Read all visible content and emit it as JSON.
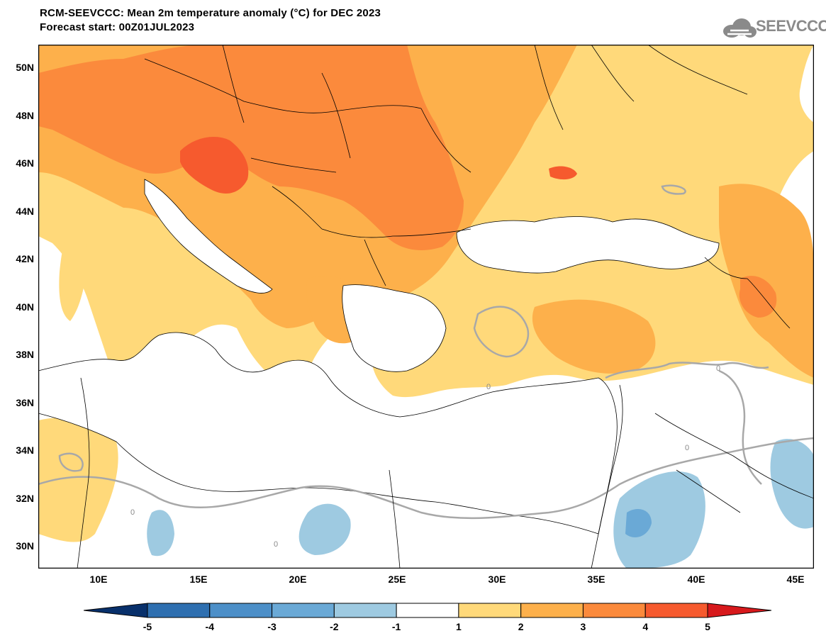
{
  "header": {
    "title": "RCM-SEEVCCC: Mean 2m temperature anomaly (°C) for DEC 2023",
    "subtitle": "Forecast start: 00Z01JUL2023",
    "logo_text": "SEEVCCC"
  },
  "map": {
    "lat_labels": [
      "50N",
      "48N",
      "46N",
      "44N",
      "42N",
      "40N",
      "38N",
      "36N",
      "34N",
      "32N",
      "30N"
    ],
    "lon_labels": [
      "10E",
      "15E",
      "20E",
      "25E",
      "30E",
      "35E",
      "40E",
      "45E"
    ],
    "contour_label": "0"
  },
  "colorbar": {
    "labels": [
      "-5",
      "-4",
      "-3",
      "-2",
      "-1",
      "1",
      "2",
      "3",
      "4",
      "5"
    ],
    "colors": [
      "#08306b",
      "#2e6fb0",
      "#4c8fc8",
      "#6aa9d6",
      "#9ecae1",
      "#ffffff",
      "#ffd97a",
      "#fdb04b",
      "#fb8a3c",
      "#f65a2e",
      "#d7191c"
    ]
  }
}
